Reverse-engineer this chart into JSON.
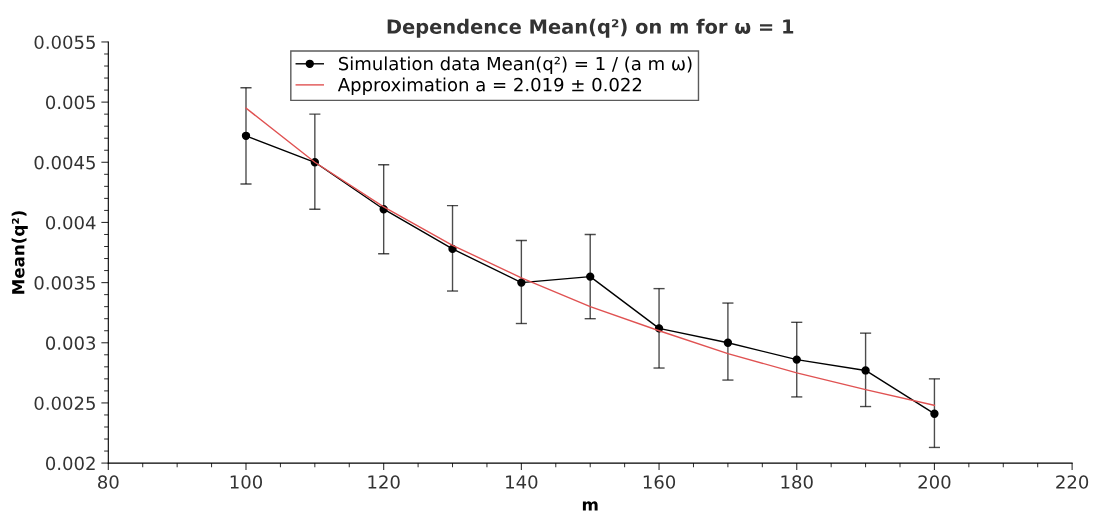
{
  "chart_data": {
    "type": "line",
    "title": "Dependence Mean(q²) on m for ω = 1",
    "xlabel": "m",
    "ylabel": "Mean(q²)",
    "xlim": [
      80,
      220
    ],
    "xticks": [
      80,
      100,
      120,
      140,
      160,
      180,
      200,
      220
    ],
    "ylim": [
      0.002,
      0.0055
    ],
    "yticks": [
      0.002,
      0.0025,
      0.003,
      0.0035,
      0.004,
      0.0045,
      0.005,
      0.0055
    ],
    "grid": false,
    "legend": "top left",
    "series": [
      {
        "name": "Simulation data Mean(q²) = 1 / (a m ω)",
        "color": "#000000",
        "marker": "circle",
        "x": [
          100,
          110,
          120,
          130,
          140,
          150,
          160,
          170,
          180,
          190,
          200
        ],
        "values": [
          0.00472,
          0.0045,
          0.00411,
          0.00378,
          0.0035,
          0.00355,
          0.00312,
          0.003,
          0.00286,
          0.00277,
          0.00241
        ],
        "errors": [
          [
            0.00432,
            0.00512
          ],
          [
            0.00411,
            0.0049
          ],
          [
            0.00374,
            0.00448
          ],
          [
            0.00343,
            0.00414
          ],
          [
            0.00316,
            0.00385
          ],
          [
            0.0032,
            0.0039
          ],
          [
            0.00279,
            0.00345
          ],
          [
            0.00269,
            0.00333
          ],
          [
            0.00255,
            0.00317
          ],
          [
            0.00247,
            0.00308
          ],
          [
            0.00213,
            0.0027
          ]
        ]
      },
      {
        "name": "Approximation a = 2.019 ± 0.022",
        "color": "#e05252",
        "marker": "none",
        "x": [
          100,
          110,
          120,
          130,
          140,
          150,
          160,
          170,
          180,
          190,
          200
        ],
        "values": [
          0.00495,
          0.0045,
          0.00413,
          0.00381,
          0.00354,
          0.0033,
          0.0031,
          0.00291,
          0.00275,
          0.00261,
          0.00248
        ]
      }
    ]
  }
}
